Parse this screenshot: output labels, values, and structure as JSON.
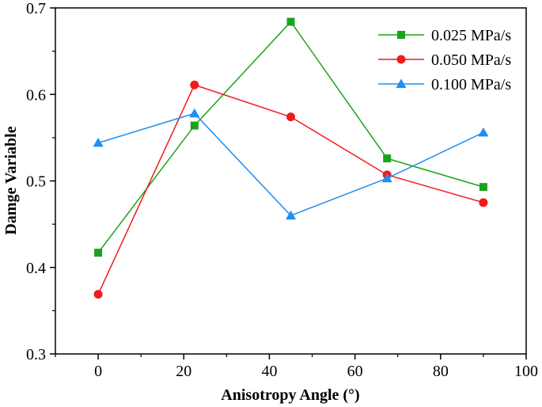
{
  "chart_data": {
    "type": "line",
    "title": "",
    "xlabel": "Anisotropy Angle (°)",
    "ylabel": "Damge Variable",
    "xlim": [
      -10,
      100
    ],
    "ylim": [
      0.3,
      0.7
    ],
    "xticks": [
      0,
      20,
      40,
      60,
      80,
      100
    ],
    "xtick_labels": [
      "0",
      "20",
      "40",
      "60",
      "80",
      "100"
    ],
    "yticks": [
      0.3,
      0.4,
      0.5,
      0.6,
      0.7
    ],
    "ytick_labels": [
      "0.3",
      "0.4",
      "0.5",
      "0.6",
      "0.7"
    ],
    "grid": false,
    "legend_position": "top-right",
    "x": [
      0,
      22.5,
      45,
      67.5,
      90
    ],
    "series": [
      {
        "name": "0.025 MPa/s",
        "color": "#1aa31a",
        "marker": "square",
        "values": [
          0.417,
          0.564,
          0.684,
          0.526,
          0.493
        ]
      },
      {
        "name": "0.050 MPa/s",
        "color": "#ee1c1c",
        "marker": "circle",
        "values": [
          0.369,
          0.611,
          0.574,
          0.507,
          0.475
        ]
      },
      {
        "name": "0.100 MPa/s",
        "color": "#1e8ff0",
        "marker": "triangle",
        "values": [
          0.544,
          0.578,
          0.46,
          0.503,
          0.556
        ]
      }
    ]
  }
}
